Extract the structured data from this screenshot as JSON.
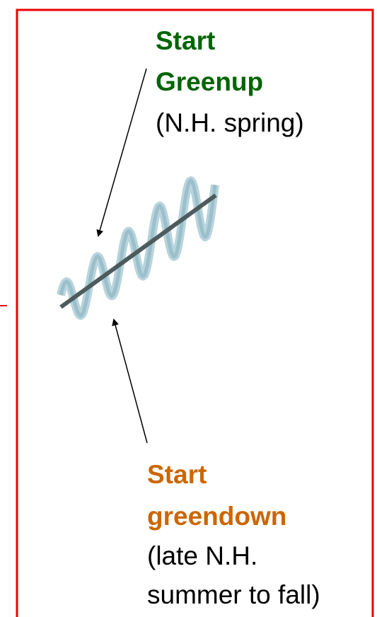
{
  "greenup": {
    "title": [
      "Start",
      "Greenup"
    ],
    "note": [
      "(N.H. spring)"
    ]
  },
  "greendown": {
    "title": [
      "Start",
      "greendown"
    ],
    "note": [
      "(late N.H.",
      "summer to fall)"
    ]
  }
}
